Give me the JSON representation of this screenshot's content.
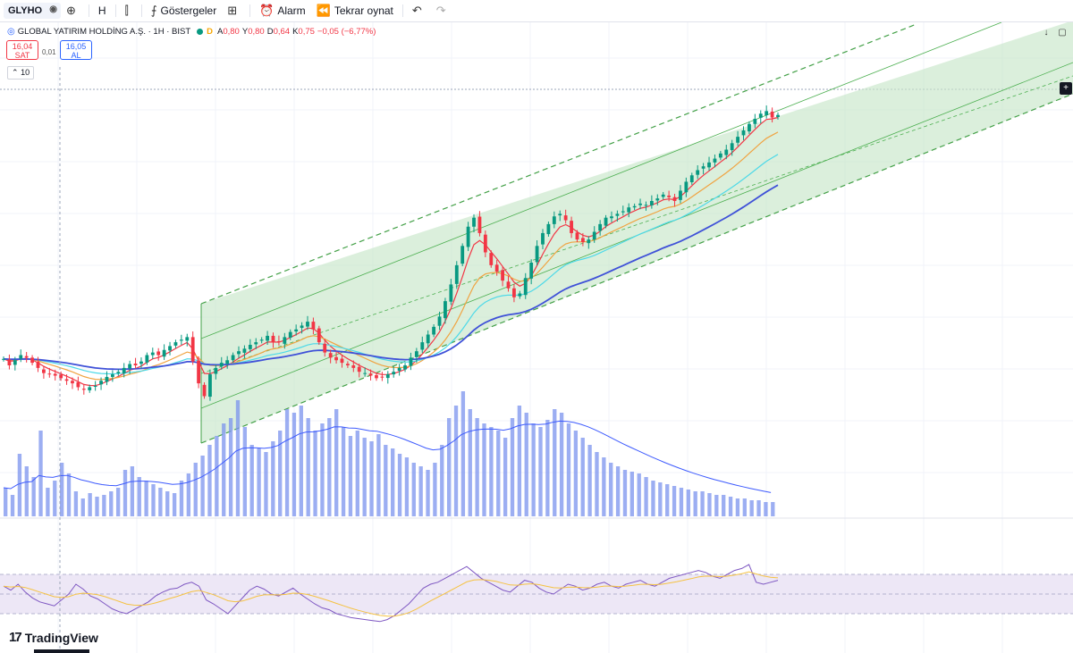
{
  "toolbar": {
    "symbol": "GLYHO",
    "interval": "H",
    "indicators_label": "Göstergeler",
    "alarm_label": "Alarm",
    "replay_label": "Tekrar oynat"
  },
  "legend": {
    "title": "GLOBAL YATIRIM HOLDİNG A.Ş. · 1H · BIST",
    "badge": "D",
    "open_key": "A",
    "open": "0,80",
    "high_key": "Y",
    "high": "0,80",
    "low_key": "D",
    "low": "0,64",
    "close_key": "K",
    "close": "0,75",
    "change": "−0,05 (−6,77%)"
  },
  "quote": {
    "sell_price": "16,04",
    "sell_label": "SAT",
    "spread": "0,01",
    "buy_price": "16,05",
    "buy_label": "AL"
  },
  "count_badge": "10",
  "brand": "TradingView",
  "colors": {
    "up": "#089981",
    "down": "#f23645",
    "channel_fill": "#c8e6c9",
    "channel_line": "#4caf50",
    "ma_red": "#f23645",
    "ma_orange": "#f0a341",
    "ma_cyan": "#4dd9e8",
    "ma_blue": "#3f51d8",
    "volume": "#7b93ee",
    "rsi": "#7e57c2",
    "rsi_ma": "#f5c242",
    "rsi_band": "#ede7f6"
  },
  "chart_data": {
    "type": "line",
    "title": "",
    "xlabel": "",
    "ylabel": "",
    "series": [
      {
        "name": "",
        "values": [
          0.57,
          0.52,
          0.56,
          0.6,
          0.58,
          0.54,
          0.5,
          0.46,
          0.45,
          0.44,
          0.42,
          0.4,
          0.38,
          0.35,
          0.33,
          0.35,
          0.36,
          0.4,
          0.43,
          0.45,
          0.47,
          0.5,
          0.53,
          0.52,
          0.55,
          0.6,
          0.62,
          0.6,
          0.64,
          0.67,
          0.7,
          0.72,
          0.74,
          0.55,
          0.38,
          0.28,
          0.45,
          0.5,
          0.54,
          0.56,
          0.6,
          0.63,
          0.65,
          0.68,
          0.7,
          0.72,
          0.75,
          0.7,
          0.7,
          0.74,
          0.78,
          0.8,
          0.83,
          0.86,
          0.8,
          0.7,
          0.62,
          0.58,
          0.56,
          0.54,
          0.52,
          0.5,
          0.47,
          0.46,
          0.44,
          0.42,
          0.43,
          0.45,
          0.47,
          0.5,
          0.52,
          0.58,
          0.63,
          0.7,
          0.76,
          0.82,
          0.9,
          1.02,
          1.15,
          1.3,
          1.45,
          1.6,
          1.67,
          1.55,
          1.4,
          1.3,
          1.25,
          1.18,
          1.12,
          1.05,
          1.08,
          1.2,
          1.32,
          1.45,
          1.55,
          1.62,
          1.68,
          1.7,
          1.65,
          1.55,
          1.5,
          1.48,
          1.5,
          1.56,
          1.62,
          1.67,
          1.68,
          1.7,
          1.72,
          1.75,
          1.76,
          1.78,
          1.77,
          1.8,
          1.82,
          1.85,
          1.83,
          1.8,
          1.88,
          1.95,
          2.0,
          2.04,
          2.07,
          2.1,
          2.13,
          2.17,
          2.2,
          2.25,
          2.3,
          2.35,
          2.4,
          2.44,
          2.48,
          2.5,
          2.45,
          2.47
        ]
      },
      {
        "name": "",
        "values": [
          16,
          12,
          35,
          28,
          22,
          48,
          16,
          20,
          30,
          24,
          14,
          10,
          13,
          11,
          12,
          14,
          16,
          26,
          28,
          22,
          20,
          18,
          16,
          14,
          13,
          20,
          24,
          30,
          34,
          40,
          45,
          52,
          55,
          65,
          50,
          40,
          38,
          36,
          42,
          48,
          60,
          58,
          62,
          55,
          48,
          52,
          55,
          60,
          50,
          45,
          48,
          44,
          42,
          46,
          40,
          38,
          35,
          33,
          30,
          28,
          26,
          30,
          40,
          55,
          62,
          70,
          60,
          55,
          52,
          50,
          48,
          44,
          55,
          62,
          58,
          52,
          50,
          54,
          60,
          58,
          52,
          48,
          44,
          40,
          36,
          33,
          30,
          28,
          26,
          25,
          24,
          22,
          20,
          19,
          18,
          17,
          16,
          15,
          14,
          14,
          13,
          12,
          12,
          11,
          10,
          10,
          9,
          9,
          8,
          8
        ]
      },
      {
        "name": "",
        "values": [
          58,
          54,
          60,
          52,
          46,
          42,
          40,
          38,
          44,
          50,
          60,
          55,
          48,
          45,
          40,
          35,
          32,
          30,
          34,
          38,
          42,
          48,
          52,
          55,
          56,
          60,
          62,
          58,
          44,
          40,
          35,
          30,
          38,
          46,
          54,
          58,
          55,
          50,
          48,
          52,
          56,
          50,
          45,
          40,
          36,
          34,
          30,
          28,
          26,
          25,
          24,
          23,
          22,
          24,
          28,
          34,
          40,
          48,
          56,
          60,
          62,
          66,
          70,
          74,
          78,
          72,
          66,
          62,
          58,
          54,
          52,
          58,
          64,
          62,
          56,
          52,
          50,
          55,
          60,
          58,
          54,
          56,
          60,
          62,
          58,
          56,
          60,
          62,
          64,
          60,
          58,
          62,
          66,
          68,
          70,
          72,
          74,
          72,
          68,
          66,
          70,
          74,
          76,
          80,
          62,
          60,
          62,
          64
        ]
      }
    ]
  }
}
